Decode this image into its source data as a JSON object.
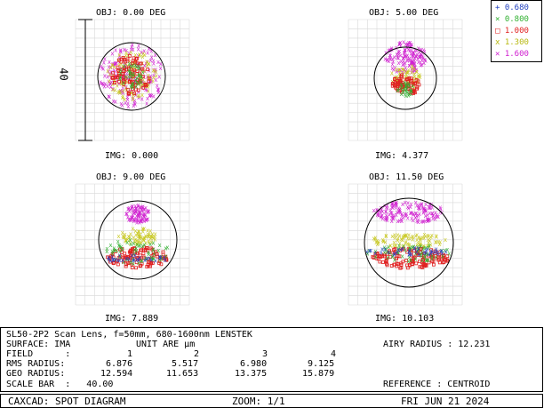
{
  "legend": [
    {
      "sym": "+",
      "label": "0.680",
      "color": "#1f3fbf"
    },
    {
      "sym": "×",
      "label": "0.800",
      "color": "#30b030"
    },
    {
      "sym": "□",
      "label": "1.000",
      "color": "#e02020"
    },
    {
      "sym": "x",
      "label": "1.300",
      "color": "#c8c820"
    },
    {
      "sym": "✕",
      "label": "1.600",
      "color": "#d020d0"
    }
  ],
  "scale_label": "40",
  "panels": [
    {
      "obj": "OBJ: 0.00 DEG",
      "img": "IMG: 0.000"
    },
    {
      "obj": "OBJ: 5.00 DEG",
      "img": "IMG: 4.377"
    },
    {
      "obj": "OBJ: 9.00 DEG",
      "img": "IMG: 7.889"
    },
    {
      "obj": "OBJ: 11.50 DEG",
      "img": "IMG: 10.103"
    }
  ],
  "info": {
    "title": "SL50-2P2 Scan Lens, f=50mm, 680-1600nm LENSTEK",
    "surface": "SURFACE: IMA",
    "units": "UNIT ARE µm",
    "airy": "AIRY RADIUS : 12.231",
    "field_label": "FIELD      :",
    "fields": [
      "1",
      "2",
      "3",
      "4"
    ],
    "rms_label": "RMS RADIUS:",
    "rms": [
      "6.876",
      "5.517",
      "6.980",
      "9.125"
    ],
    "geo_label": "GEO RADIUS:",
    "geo": [
      "12.594",
      "11.653",
      "13.375",
      "15.879"
    ],
    "scale_bar": "SCALE BAR  :   40.00",
    "reference": "REFERENCE : CENTROID"
  },
  "footer": {
    "app": "CAXCAD: SPOT DIAGRAM",
    "zoom": "ZOOM: 1/1",
    "date": "FRI JUN 21 2024"
  }
}
